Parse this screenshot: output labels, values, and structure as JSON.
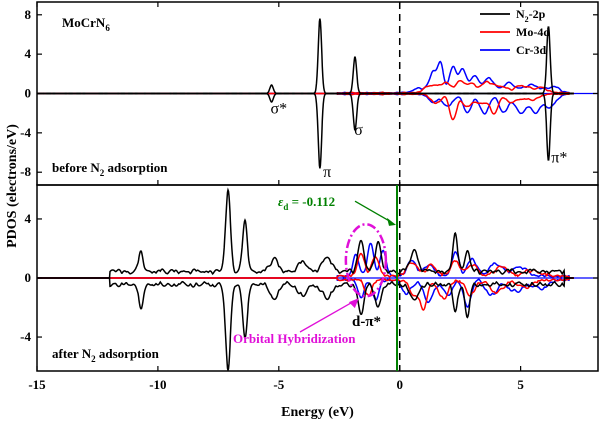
{
  "chart_data": {
    "type": "line",
    "material": "MoCrN",
    "material_sub": "6",
    "xlabel": "Energy (eV)",
    "ylabel": "PDOS (electrons/eV)",
    "xlim": [
      -15,
      8.2
    ],
    "x_ticks": [
      -15,
      -10,
      -5,
      0,
      5
    ],
    "fermi_level": 0,
    "legend": [
      {
        "main": "N",
        "sub": "2",
        "rest": "-2p",
        "color": "#000000"
      },
      {
        "main": "Mo-4d",
        "sub": "",
        "rest": "",
        "color": "#ff0000"
      },
      {
        "main": "Cr-3d",
        "sub": "",
        "rest": "",
        "color": "#0000ff"
      }
    ],
    "colors": {
      "n2": "#000000",
      "mo": "#ff0000",
      "cr": "#0000ff",
      "fermi": "#000000",
      "dband": "#008000",
      "hyb": "#e010d8"
    },
    "panels": [
      {
        "name": "before",
        "label_a": "before N",
        "label_sub": "2",
        "label_b": " adsorption",
        "ylim": [
          -9.3,
          9.3
        ],
        "y_ticks": [
          8,
          4,
          0,
          -4,
          -8
        ],
        "orbital_labels": [
          {
            "text": "σ*",
            "x": -5.0,
            "y": -1.5
          },
          {
            "text": "π",
            "x": -3.0,
            "y": -8.0
          },
          {
            "text": "σ",
            "x": -1.7,
            "y": -3.7
          },
          {
            "text": "π*",
            "x": 6.6,
            "y": -6.5
          }
        ],
        "series": [
          {
            "name": "N2-2p",
            "color": "#000000",
            "peaks": [
              [
                -5.3,
                0.85,
                0.07
              ],
              [
                -3.3,
                7.6,
                0.07
              ],
              [
                -1.85,
                3.7,
                0.07
              ],
              [
                6.15,
                6.8,
                0.07
              ]
            ],
            "baseline": 0.02
          },
          {
            "name": "Mo-4d",
            "color": "#ff0000",
            "peaks": [
              [
                1.3,
                0.8,
                0.25
              ],
              [
                1.9,
                1.0,
                0.2
              ],
              [
                2.5,
                1.1,
                0.2
              ],
              [
                3.0,
                0.9,
                0.2
              ],
              [
                3.6,
                1.0,
                0.2
              ],
              [
                4.1,
                0.7,
                0.25
              ],
              [
                5.0,
                0.7,
                0.3
              ],
              [
                5.8,
                0.5,
                0.3
              ]
            ],
            "down": [
              [
                1.5,
                0.9,
                0.2
              ],
              [
                2.2,
                2.5,
                0.15
              ],
              [
                2.8,
                1.3,
                0.2
              ],
              [
                3.4,
                1.0,
                0.2
              ],
              [
                3.9,
                2.0,
                0.15
              ],
              [
                4.6,
                0.8,
                0.25
              ],
              [
                5.4,
                0.6,
                0.3
              ]
            ]
          },
          {
            "name": "Cr-3d",
            "color": "#0000ff",
            "peaks": [
              [
                0.9,
                0.5,
                0.3
              ],
              [
                1.4,
                2.0,
                0.15
              ],
              [
                1.7,
                2.8,
                0.12
              ],
              [
                2.2,
                2.5,
                0.15
              ],
              [
                2.6,
                2.3,
                0.15
              ],
              [
                3.1,
                1.6,
                0.2
              ],
              [
                3.7,
                1.5,
                0.2
              ],
              [
                4.5,
                1.0,
                0.25
              ],
              [
                5.4,
                0.8,
                0.3
              ],
              [
                6.3,
                0.6,
                0.3
              ]
            ],
            "down": [
              [
                1.4,
                0.8,
                0.2
              ],
              [
                2.0,
                1.2,
                0.2
              ],
              [
                2.8,
                1.8,
                0.18
              ],
              [
                3.5,
                2.0,
                0.18
              ],
              [
                4.3,
                1.8,
                0.2
              ],
              [
                5.0,
                2.0,
                0.2
              ],
              [
                5.6,
                1.8,
                0.2
              ],
              [
                6.2,
                1.3,
                0.25
              ]
            ]
          }
        ]
      },
      {
        "name": "after",
        "label_a": "after N",
        "label_sub": "2",
        "label_b": " adsorption",
        "ylim": [
          -6.3,
          6.3
        ],
        "y_ticks": [
          4,
          0,
          -4
        ],
        "d_band_center": -0.112,
        "d_band_text": " = -0.112",
        "hybrid_text": "Orbital Hybridization",
        "dpi_text": "d-π*",
        "series": [
          {
            "name": "N2-2p",
            "color": "#000000",
            "peaks": [
              [
                -10.7,
                1.2,
                0.1
              ],
              [
                -7.1,
                5.5,
                0.1
              ],
              [
                -6.4,
                3.3,
                0.1
              ],
              [
                -5.2,
                0.9,
                0.15
              ],
              [
                -4.0,
                0.6,
                0.2
              ],
              [
                -3.0,
                0.9,
                0.2
              ],
              [
                -1.6,
                2.2,
                0.12
              ],
              [
                -0.9,
                2.0,
                0.12
              ],
              [
                0.6,
                1.5,
                0.15
              ],
              [
                2.3,
                2.5,
                0.1
              ],
              [
                2.8,
                1.5,
                0.1
              ]
            ],
            "down": [
              [
                -10.7,
                1.5,
                0.1
              ],
              [
                -7.1,
                5.8,
                0.1
              ],
              [
                -6.4,
                3.5,
                0.1
              ],
              [
                -5.2,
                1.0,
                0.15
              ],
              [
                -4.0,
                0.7,
                0.2
              ],
              [
                -3.0,
                0.9,
                0.2
              ],
              [
                -1.6,
                2.0,
                0.12
              ],
              [
                -0.9,
                1.5,
                0.12
              ],
              [
                0.6,
                1.2,
                0.15
              ],
              [
                2.3,
                1.7,
                0.1
              ],
              [
                2.8,
                2.2,
                0.1
              ]
            ],
            "baseline": 0.6
          },
          {
            "name": "Mo-4d",
            "color": "#ff0000",
            "peaks": [
              [
                -1.6,
                1.5,
                0.15
              ],
              [
                -1.0,
                1.3,
                0.15
              ],
              [
                0.5,
                1.0,
                0.2
              ],
              [
                1.3,
                0.8,
                0.2
              ],
              [
                2.3,
                1.0,
                0.2
              ],
              [
                3.0,
                0.8,
                0.2
              ],
              [
                4.2,
                0.6,
                0.3
              ],
              [
                5.5,
                0.4,
                0.3
              ]
            ],
            "down": [
              [
                -1.3,
                1.0,
                0.15
              ],
              [
                0.6,
                1.0,
                0.2
              ],
              [
                1.0,
                1.8,
                0.15
              ],
              [
                1.8,
                1.3,
                0.2
              ],
              [
                2.9,
                1.0,
                0.2
              ],
              [
                4.0,
                0.8,
                0.3
              ],
              [
                5.2,
                0.5,
                0.3
              ]
            ],
            "baseline": 0.15
          },
          {
            "name": "Cr-3d",
            "color": "#0000ff",
            "peaks": [
              [
                -1.8,
                1.5,
                0.12
              ],
              [
                -1.2,
                2.3,
                0.12
              ],
              [
                -0.7,
                1.8,
                0.12
              ],
              [
                0.5,
                1.0,
                0.2
              ],
              [
                1.2,
                0.8,
                0.2
              ],
              [
                2.3,
                1.6,
                0.15
              ],
              [
                3.0,
                1.1,
                0.2
              ],
              [
                4.0,
                0.8,
                0.3
              ],
              [
                5.0,
                0.6,
                0.3
              ]
            ],
            "down": [
              [
                -1.6,
                1.2,
                0.12
              ],
              [
                -1.0,
                1.5,
                0.12
              ],
              [
                0.3,
                0.9,
                0.2
              ],
              [
                1.2,
                1.5,
                0.2
              ],
              [
                2.0,
                1.0,
                0.2
              ],
              [
                2.8,
                1.8,
                0.15
              ],
              [
                3.8,
                1.0,
                0.25
              ],
              [
                4.8,
                0.8,
                0.3
              ],
              [
                5.8,
                0.6,
                0.3
              ]
            ],
            "baseline": 0.15
          }
        ]
      }
    ]
  }
}
